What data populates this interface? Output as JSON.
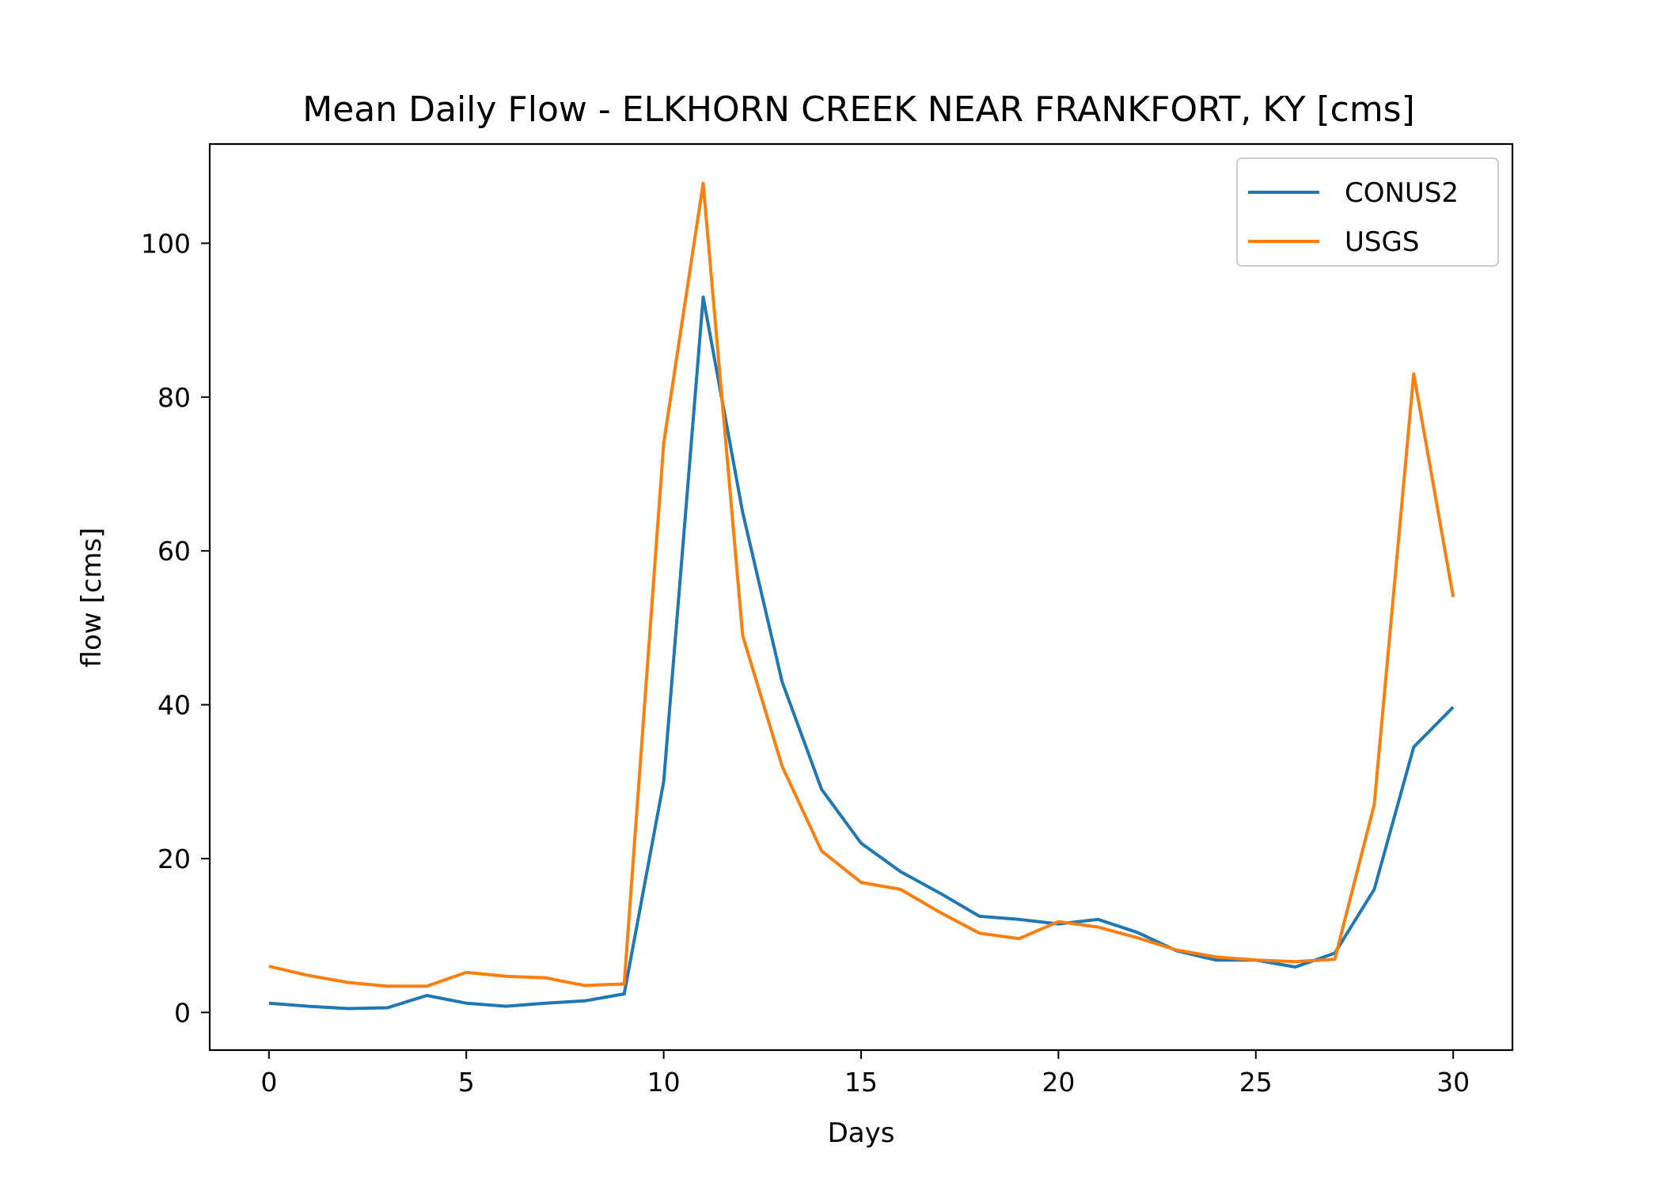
{
  "chart_data": {
    "type": "line",
    "title": "Mean Daily Flow - ELKHORN CREEK NEAR FRANKFORT, KY [cms]",
    "xlabel": "Days",
    "ylabel": "flow [cms]",
    "xlim": [
      -1.5,
      31.5
    ],
    "ylim": [
      -4.9,
      112.9
    ],
    "xticks": [
      0,
      5,
      10,
      15,
      20,
      25,
      30
    ],
    "yticks": [
      0,
      20,
      40,
      60,
      80,
      100
    ],
    "grid": false,
    "legend_position": "top-right",
    "x": [
      0,
      1,
      2,
      3,
      4,
      5,
      6,
      7,
      8,
      9,
      10,
      11,
      12,
      13,
      14,
      15,
      16,
      17,
      18,
      19,
      20,
      21,
      22,
      23,
      24,
      25,
      26,
      27,
      28,
      29,
      30
    ],
    "series": [
      {
        "name": "CONUS2",
        "color": "#1f77b4",
        "values": [
          1.2,
          0.8,
          0.5,
          0.6,
          2.2,
          1.2,
          0.8,
          1.2,
          1.5,
          2.4,
          30.0,
          93.0,
          65.0,
          43.0,
          29.0,
          22.0,
          18.3,
          15.5,
          12.5,
          12.1,
          11.5,
          12.1,
          10.4,
          8.0,
          6.8,
          6.8,
          5.9,
          7.7,
          16.0,
          34.5,
          39.7
        ]
      },
      {
        "name": "USGS",
        "color": "#ff7f0e",
        "values": [
          6.0,
          4.8,
          3.9,
          3.4,
          3.4,
          5.2,
          4.7,
          4.5,
          3.5,
          3.7,
          74.0,
          107.8,
          49.0,
          32.0,
          21.0,
          16.9,
          16.0,
          13.0,
          10.3,
          9.6,
          11.8,
          11.1,
          9.7,
          8.1,
          7.2,
          6.8,
          6.6,
          6.9,
          27.0,
          83.0,
          54.0
        ]
      }
    ]
  }
}
